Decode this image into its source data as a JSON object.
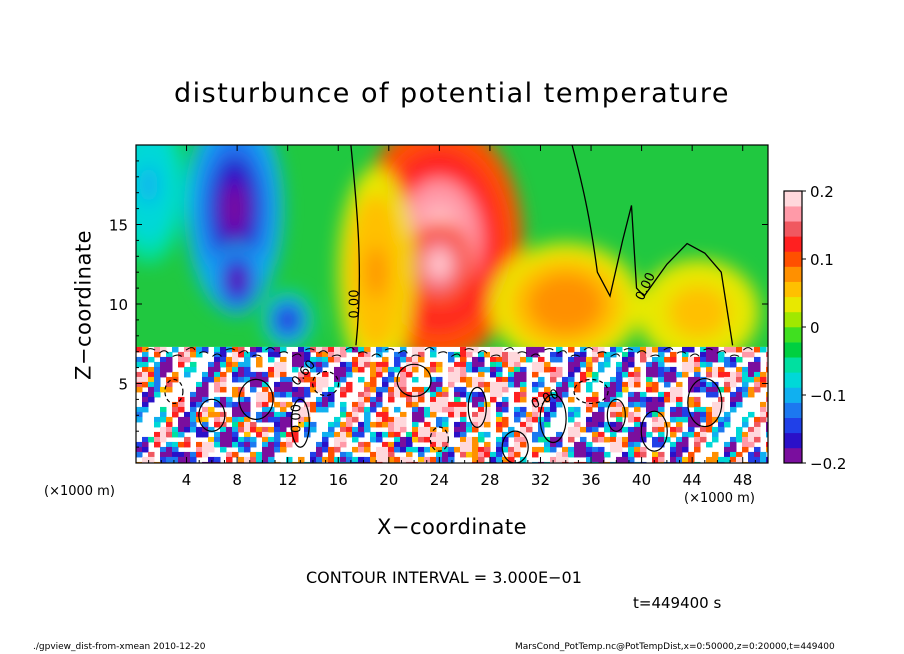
{
  "chart_data": {
    "type": "heatmap",
    "title": "disturbunce of potential temperature",
    "xlabel": "X−coordinate",
    "ylabel": "Z−coordinate",
    "x_unit": "(×1000 m)",
    "xlim": [
      0,
      50
    ],
    "ylim": [
      0,
      20
    ],
    "x_ticks": [
      4,
      8,
      12,
      16,
      20,
      24,
      28,
      32,
      36,
      40,
      44,
      48
    ],
    "y_ticks": [
      5,
      10,
      15
    ],
    "colorbar": {
      "range": [
        -0.2,
        0.2
      ],
      "ticks": [
        0.2,
        0.1,
        0,
        -0.1,
        -0.2
      ],
      "tick_labels": [
        "0.2",
        "0.1",
        "0",
        "−0.1",
        "−0.2"
      ],
      "colors": [
        "#7a0e9e",
        "#2a10c8",
        "#2040e8",
        "#1c78f0",
        "#10b0f0",
        "#00d8d8",
        "#00e0a0",
        "#00d040",
        "#40e020",
        "#a0e800",
        "#e8e800",
        "#ffc000",
        "#ff9000",
        "#ff5000",
        "#ff2020",
        "#f05860",
        "#ff9aa8",
        "#ffd8dc"
      ]
    },
    "contour_interval": "CONTOUR INTERVAL = 3.000E−01",
    "contour_labels": [
      "0.00",
      "0.00",
      "0.60",
      "0.00",
      "0.00"
    ],
    "time": "t=449400 s",
    "upper_field_blobs": [
      {
        "x": 7.8,
        "z": 16.0,
        "value": -0.19,
        "sx": 3.2,
        "sz": 6.0
      },
      {
        "x": 8.0,
        "z": 11.5,
        "value": -0.2,
        "sx": 1.6,
        "sz": 2.0
      },
      {
        "x": 12.0,
        "z": 9.0,
        "value": -0.17,
        "sx": 1.6,
        "sz": 1.6
      },
      {
        "x": 1.0,
        "z": 17.5,
        "value": -0.1,
        "sx": 2.5,
        "sz": 4.5
      },
      {
        "x": 24.0,
        "z": 14.0,
        "value": 0.19,
        "sx": 5.5,
        "sz": 7.0
      },
      {
        "x": 24.0,
        "z": 12.5,
        "value": 0.2,
        "sx": 2.2,
        "sz": 2.5
      },
      {
        "x": 34.0,
        "z": 10.0,
        "value": 0.08,
        "sx": 5.0,
        "sz": 3.5
      },
      {
        "x": 44.5,
        "z": 9.5,
        "value": 0.06,
        "sx": 4.0,
        "sz": 3.0
      },
      {
        "x": 19.0,
        "z": 12.0,
        "value": 0.07,
        "sx": 2.5,
        "sz": 6.0
      }
    ]
  },
  "labels": {
    "x_unit_left": "(×1000 m)",
    "x_unit_right": "(×1000 m)",
    "footer_left": "./gpview_dist-from-xmean   2010-12-20",
    "footer_right": "MarsCond_PotTemp.nc@PotTempDist,x=0:50000,z=0:20000,t=449400"
  }
}
